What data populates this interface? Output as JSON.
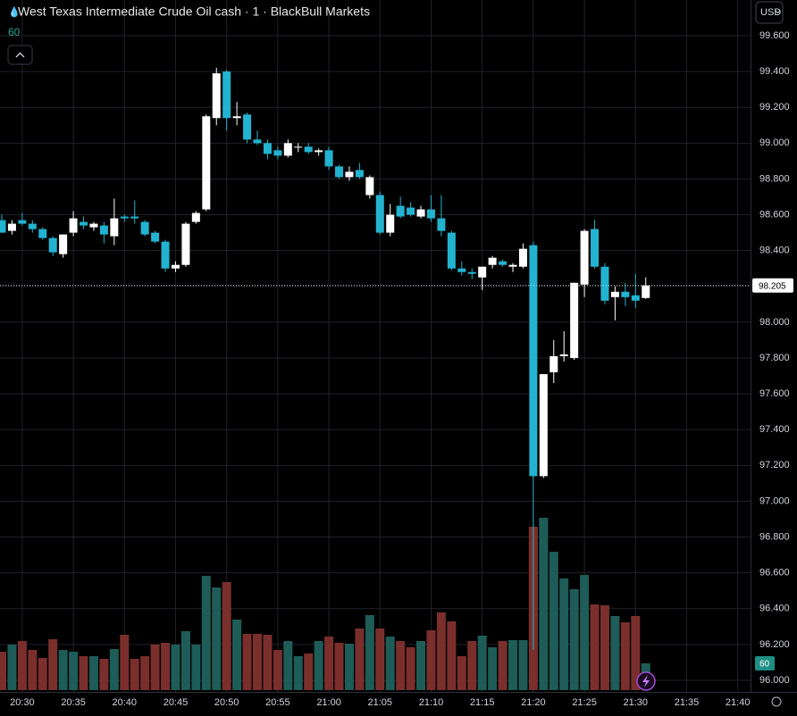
{
  "chart_data": {
    "type": "candlestick",
    "title": "West Texas Intermediate Crude Oil cash · 1 · BlackBull Markets",
    "currency": "USD",
    "categories": [
      null,
      null,
      "20:30",
      null,
      null,
      null,
      null,
      "20:35",
      null,
      null,
      null,
      null,
      "20:40",
      null,
      null,
      null,
      null,
      "20:45",
      null,
      null,
      null,
      null,
      "20:50",
      null,
      null,
      null,
      null,
      "20:55",
      null,
      null,
      null,
      null,
      "21:00",
      null,
      null,
      null,
      null,
      "21:05",
      null,
      null,
      null,
      null,
      "21:10",
      null,
      null,
      null,
      null,
      "21:15",
      null,
      null,
      null,
      null,
      "21:20",
      null,
      null,
      null,
      null,
      "21:25",
      null,
      null,
      null,
      null,
      "21:30",
      null,
      null,
      null,
      null,
      "21:35",
      null,
      null,
      null,
      null,
      "21:40",
      null
    ],
    "open": [
      98.57,
      98.51,
      98.57,
      98.55,
      98.52,
      98.47,
      98.38,
      98.5,
      98.56,
      98.53,
      98.54,
      98.48,
      98.59,
      98.59,
      98.56,
      98.5,
      98.45,
      98.3,
      98.32,
      98.56,
      98.63,
      99.14,
      99.4,
      99.14,
      99.16,
      99.02,
      99.0,
      98.96,
      98.93,
      98.98,
      98.98,
      98.95,
      98.96,
      98.87,
      98.81,
      98.85,
      98.71,
      98.71,
      98.5,
      98.65,
      98.64,
      98.59,
      98.63,
      98.58,
      98.5,
      98.3,
      98.28,
      98.25,
      98.32,
      98.34,
      98.31,
      98.31,
      98.43,
      97.14,
      97.72,
      97.81,
      97.8,
      98.21,
      98.52,
      98.31,
      98.14,
      98.17,
      98.15,
      98.135,
      null,
      null,
      null,
      null,
      null,
      null,
      null,
      null,
      null,
      null
    ],
    "high": [
      98.6,
      98.57,
      98.61,
      98.57,
      98.53,
      98.48,
      98.47,
      98.62,
      98.59,
      98.56,
      98.56,
      98.69,
      98.6,
      98.68,
      98.57,
      98.51,
      98.46,
      98.34,
      98.56,
      98.62,
      99.16,
      99.42,
      99.41,
      99.23,
      99.17,
      99.07,
      99.02,
      98.98,
      99.02,
      99.0,
      99.0,
      98.97,
      98.98,
      98.88,
      98.87,
      98.89,
      98.82,
      98.73,
      98.66,
      98.7,
      98.67,
      98.65,
      98.71,
      98.71,
      98.51,
      98.34,
      98.3,
      98.3,
      98.37,
      98.35,
      98.33,
      98.44,
      98.45,
      97.7,
      97.9,
      97.95,
      98.22,
      98.52,
      98.57,
      98.33,
      98.2,
      98.22,
      98.27,
      98.25,
      null,
      null,
      null,
      null,
      null,
      null,
      null,
      null,
      null,
      null
    ],
    "low": [
      98.5,
      98.49,
      98.54,
      98.5,
      98.46,
      98.37,
      98.36,
      98.48,
      98.52,
      98.51,
      98.44,
      98.43,
      98.56,
      98.55,
      98.48,
      98.44,
      98.28,
      98.28,
      98.31,
      98.55,
      98.62,
      99.1,
      99.07,
      99.1,
      99.0,
      98.99,
      98.91,
      98.91,
      98.92,
      98.95,
      98.94,
      98.93,
      98.85,
      98.8,
      98.79,
      98.8,
      98.69,
      98.49,
      98.48,
      98.58,
      98.59,
      98.58,
      98.56,
      98.48,
      98.29,
      98.26,
      98.24,
      98.18,
      98.3,
      98.31,
      98.28,
      98.3,
      96.17,
      97.13,
      97.66,
      97.78,
      97.79,
      98.14,
      98.3,
      98.1,
      98.01,
      98.09,
      98.08,
      98.13,
      null,
      null,
      null,
      null,
      null,
      null,
      null,
      null,
      null,
      null
    ],
    "close": [
      98.5,
      98.55,
      98.55,
      98.52,
      98.47,
      98.39,
      98.49,
      98.58,
      98.54,
      98.55,
      98.49,
      98.58,
      98.58,
      98.58,
      98.49,
      98.45,
      98.3,
      98.32,
      98.55,
      98.61,
      99.15,
      99.39,
      99.14,
      99.15,
      99.02,
      99.0,
      98.94,
      98.93,
      99.0,
      98.98,
      98.95,
      98.96,
      98.87,
      98.81,
      98.84,
      98.81,
      98.81,
      98.5,
      98.6,
      98.59,
      98.6,
      98.63,
      98.58,
      98.51,
      98.3,
      98.28,
      98.27,
      98.31,
      98.36,
      98.32,
      98.32,
      98.41,
      97.14,
      97.71,
      97.81,
      97.82,
      98.22,
      98.51,
      98.31,
      98.12,
      98.17,
      98.14,
      98.12,
      98.205,
      null,
      null,
      null,
      null,
      null,
      null,
      null,
      null,
      null,
      null
    ],
    "volume": [
      86,
      102,
      110,
      90,
      72,
      114,
      90,
      86,
      76,
      76,
      70,
      92,
      124,
      70,
      76,
      102,
      106,
      102,
      132,
      102,
      256,
      230,
      242,
      158,
      126,
      126,
      124,
      90,
      110,
      76,
      82,
      110,
      120,
      106,
      104,
      138,
      168,
      138,
      120,
      110,
      96,
      110,
      134,
      174,
      154,
      76,
      110,
      122,
      96,
      110,
      112,
      112,
      366,
      386,
      310,
      250,
      226,
      258,
      192,
      190,
      166,
      152,
      166,
      60,
      null,
      null,
      null,
      null,
      null,
      null,
      null,
      null,
      null,
      null
    ],
    "up_color": "#ffffff",
    "down_color": "#22b3d1",
    "volume_up_color": "#1e5c58",
    "volume_down_color": "#7a2f2c",
    "ylim": [
      96,
      99.6
    ],
    "yticks": [
      {
        "value": 96,
        "label": "96.000"
      },
      {
        "value": 96.2,
        "label": "96.200"
      },
      {
        "value": 96.4,
        "label": "96.400"
      },
      {
        "value": 96.6,
        "label": "96.600"
      },
      {
        "value": 96.8,
        "label": "96.800"
      },
      {
        "value": 97,
        "label": "97.000"
      },
      {
        "value": 97.2,
        "label": "97.200"
      },
      {
        "value": 97.4,
        "label": "97.400"
      },
      {
        "value": 97.6,
        "label": "97.600"
      },
      {
        "value": 97.8,
        "label": "97.800"
      },
      {
        "value": 98,
        "label": "98.000"
      },
      {
        "value": 98.2,
        "label": "98.200"
      },
      {
        "value": 98.4,
        "label": "98.400"
      },
      {
        "value": 98.6,
        "label": "98.600"
      },
      {
        "value": 98.8,
        "label": "98.800"
      },
      {
        "value": 99,
        "label": "99.000"
      },
      {
        "value": 99.2,
        "label": "99.200"
      },
      {
        "value": 99.4,
        "label": "99.400"
      },
      {
        "value": 99.6,
        "label": "99.600"
      }
    ],
    "volume_lim": [
      0,
      1466
    ],
    "grid": true
  }
}
